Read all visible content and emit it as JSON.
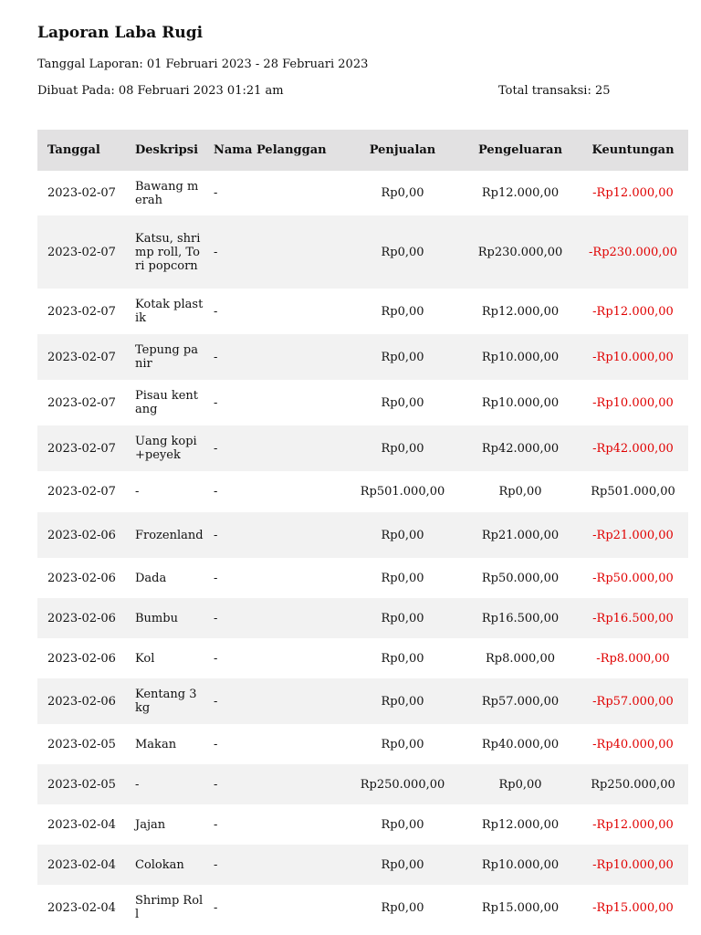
{
  "report": {
    "title": "Laporan Laba Rugi",
    "period": "Tanggal Laporan: 01 Februari 2023 - 28 Februari 2023",
    "created": "Dibuat Pada: 08 Februari 2023 01:21 am",
    "total": "Total transaksi: 25"
  },
  "columns": {
    "date": "Tanggal",
    "desc": "Deskripsi",
    "customer": "Nama Pelanggan",
    "sales": "Penjualan",
    "expense": "Pengeluaran",
    "profit": "Keuntungan"
  },
  "rows": [
    {
      "date": "2023-02-07",
      "desc": "Bawang merah",
      "customer": "-",
      "sales": "Rp0,00",
      "expense": "Rp12.000,00",
      "profit": "-Rp12.000,00"
    },
    {
      "date": "2023-02-07",
      "desc": "Katsu, shrimp roll, Tori popcorn",
      "customer": "-",
      "sales": "Rp0,00",
      "expense": "Rp230.000,00",
      "profit": "-Rp230.000,00"
    },
    {
      "date": "2023-02-07",
      "desc": "Kotak plastik",
      "customer": "-",
      "sales": "Rp0,00",
      "expense": "Rp12.000,00",
      "profit": "-Rp12.000,00"
    },
    {
      "date": "2023-02-07",
      "desc": "Tepung panir",
      "customer": "-",
      "sales": "Rp0,00",
      "expense": "Rp10.000,00",
      "profit": "-Rp10.000,00"
    },
    {
      "date": "2023-02-07",
      "desc": "Pisau kentang",
      "customer": "-",
      "sales": "Rp0,00",
      "expense": "Rp10.000,00",
      "profit": "-Rp10.000,00"
    },
    {
      "date": "2023-02-07",
      "desc": "Uang kopi +peyek",
      "customer": "-",
      "sales": "Rp0,00",
      "expense": "Rp42.000,00",
      "profit": "-Rp42.000,00"
    },
    {
      "date": "2023-02-07",
      "desc": "-",
      "customer": "-",
      "sales": "Rp501.000,00",
      "expense": "Rp0,00",
      "profit": "Rp501.000,00"
    },
    {
      "date": "2023-02-06",
      "desc": "Frozenland",
      "customer": "-",
      "sales": "Rp0,00",
      "expense": "Rp21.000,00",
      "profit": "-Rp21.000,00"
    },
    {
      "date": "2023-02-06",
      "desc": "Dada",
      "customer": "-",
      "sales": "Rp0,00",
      "expense": "Rp50.000,00",
      "profit": "-Rp50.000,00"
    },
    {
      "date": "2023-02-06",
      "desc": "Bumbu",
      "customer": "-",
      "sales": "Rp0,00",
      "expense": "Rp16.500,00",
      "profit": "-Rp16.500,00"
    },
    {
      "date": "2023-02-06",
      "desc": "Kol",
      "customer": "-",
      "sales": "Rp0,00",
      "expense": "Rp8.000,00",
      "profit": "-Rp8.000,00"
    },
    {
      "date": "2023-02-06",
      "desc": "Kentang 3 kg",
      "customer": "-",
      "sales": "Rp0,00",
      "expense": "Rp57.000,00",
      "profit": "-Rp57.000,00"
    },
    {
      "date": "2023-02-05",
      "desc": "Makan",
      "customer": "-",
      "sales": "Rp0,00",
      "expense": "Rp40.000,00",
      "profit": "-Rp40.000,00"
    },
    {
      "date": "2023-02-05",
      "desc": "-",
      "customer": "-",
      "sales": "Rp250.000,00",
      "expense": "Rp0,00",
      "profit": "Rp250.000,00"
    },
    {
      "date": "2023-02-04",
      "desc": "Jajan",
      "customer": "-",
      "sales": "Rp0,00",
      "expense": "Rp12.000,00",
      "profit": "-Rp12.000,00"
    },
    {
      "date": "2023-02-04",
      "desc": "Colokan",
      "customer": "-",
      "sales": "Rp0,00",
      "expense": "Rp10.000,00",
      "profit": "-Rp10.000,00"
    },
    {
      "date": "2023-02-04",
      "desc": "Shrimp Roll",
      "customer": "-",
      "sales": "Rp0,00",
      "expense": "Rp15.000,00",
      "profit": "-Rp15.000,00"
    }
  ],
  "colors": {
    "negative": "#e00000",
    "header_bg": "#e2e1e2",
    "stripe_bg": "#f2f2f2"
  }
}
